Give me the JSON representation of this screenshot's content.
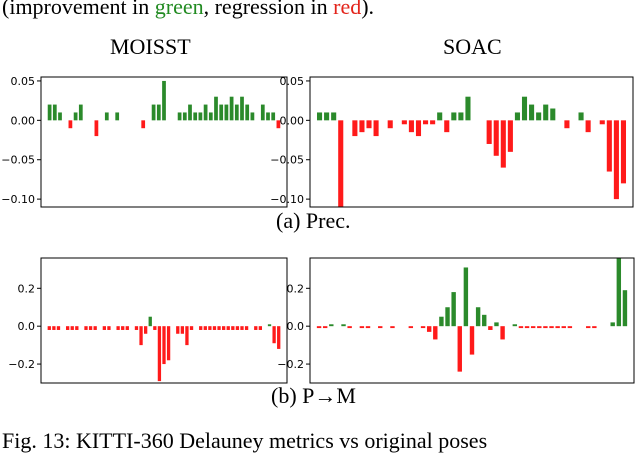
{
  "caption_top": {
    "prefix": "(improvement in ",
    "green_word": "green",
    "middle": ", regression in ",
    "red_word": "red",
    "suffix": ")."
  },
  "column_titles": {
    "left": "MOISST",
    "right": "SOAC"
  },
  "subcaptions": {
    "a": "(a) Prec.",
    "b": "(b) P→M"
  },
  "figure_caption": "Fig. 13: KITTI-360 Delauney metrics vs original poses",
  "colors": {
    "positive": "#2b8a2b",
    "negative": "#ff1a1a",
    "green_text": "#228b22",
    "red_text": "#e3241b"
  },
  "chart_data": [
    {
      "id": "prec-moisst",
      "type": "bar",
      "ylim": [
        -0.11,
        0.055
      ],
      "yticks": [
        0.05,
        0.0,
        -0.05,
        -0.1
      ],
      "ytick_labels": [
        "0.05",
        "0.00",
        "−0.05",
        "−0.10"
      ],
      "values": [
        0.02,
        0.02,
        0.01,
        0.0,
        -0.01,
        0.01,
        0.02,
        0.0,
        0.0,
        -0.02,
        0.0,
        0.01,
        0.0,
        0.01,
        0.0,
        0.0,
        0.0,
        0.0,
        -0.01,
        0.0,
        0.02,
        0.02,
        0.05,
        0.0,
        0.0,
        0.01,
        0.01,
        0.02,
        0.01,
        0.01,
        0.02,
        0.01,
        0.03,
        0.02,
        0.02,
        0.03,
        0.02,
        0.03,
        0.02,
        0.01,
        0.0,
        0.02,
        0.01,
        0.01,
        -0.01
      ]
    },
    {
      "id": "prec-soac",
      "type": "bar",
      "ylim": [
        -0.11,
        0.055
      ],
      "yticks": [
        0.05,
        0.0,
        -0.05,
        -0.1
      ],
      "ytick_labels": [
        "0.05",
        "0.00",
        "−0.05",
        "−0.10"
      ],
      "values": [
        0.01,
        0.01,
        0.01,
        -0.11,
        0.0,
        -0.02,
        -0.015,
        -0.01,
        -0.02,
        0.0,
        -0.01,
        0.0,
        -0.005,
        -0.015,
        -0.02,
        -0.005,
        -0.005,
        0.01,
        -0.015,
        0.01,
        0.01,
        0.03,
        0.0,
        0.0,
        -0.03,
        -0.045,
        -0.06,
        -0.04,
        0.01,
        0.03,
        0.02,
        0.01,
        0.02,
        0.015,
        0.0,
        -0.01,
        0.0,
        0.01,
        -0.015,
        0.0,
        -0.005,
        -0.065,
        -0.1,
        -0.08
      ]
    },
    {
      "id": "pm-moisst",
      "type": "bar",
      "ylim": [
        -0.3,
        0.36
      ],
      "yticks": [
        0.2,
        0.0,
        -0.2
      ],
      "ytick_labels": [
        "0.2",
        "0.0",
        "−0.2"
      ],
      "values": [
        -0.02,
        -0.02,
        -0.02,
        0.0,
        -0.02,
        -0.02,
        -0.02,
        0.0,
        -0.02,
        -0.02,
        -0.02,
        0.0,
        -0.02,
        -0.02,
        0.0,
        -0.02,
        -0.02,
        -0.02,
        0.0,
        -0.02,
        -0.1,
        -0.04,
        0.05,
        -0.02,
        -0.29,
        -0.2,
        -0.18,
        0.0,
        -0.04,
        -0.04,
        -0.1,
        -0.02,
        0.0,
        -0.02,
        -0.02,
        -0.02,
        -0.02,
        -0.02,
        -0.02,
        -0.02,
        -0.02,
        -0.02,
        -0.02,
        -0.02,
        0.0,
        -0.02,
        -0.02,
        0.0,
        0.01,
        -0.09,
        -0.12
      ]
    },
    {
      "id": "pm-soac",
      "type": "bar",
      "ylim": [
        -0.3,
        0.36
      ],
      "yticks": [
        0.2,
        0.0,
        -0.2
      ],
      "ytick_labels": [
        "0.2",
        "0.0",
        "−0.2"
      ],
      "values": [
        -0.01,
        -0.01,
        0.01,
        0.0,
        0.01,
        -0.01,
        0.0,
        -0.01,
        -0.01,
        0.0,
        -0.01,
        0.0,
        -0.01,
        0.0,
        0.0,
        -0.01,
        0.0,
        -0.01,
        -0.03,
        -0.07,
        0.05,
        0.1,
        0.18,
        -0.24,
        0.31,
        -0.15,
        0.1,
        0.06,
        -0.02,
        0.02,
        -0.07,
        0.0,
        0.01,
        -0.01,
        -0.01,
        -0.01,
        -0.01,
        -0.01,
        -0.01,
        -0.01,
        -0.01,
        -0.01,
        0.0,
        0.0,
        -0.01,
        -0.01,
        0.0,
        0.0,
        0.02,
        0.36,
        0.19
      ]
    }
  ]
}
